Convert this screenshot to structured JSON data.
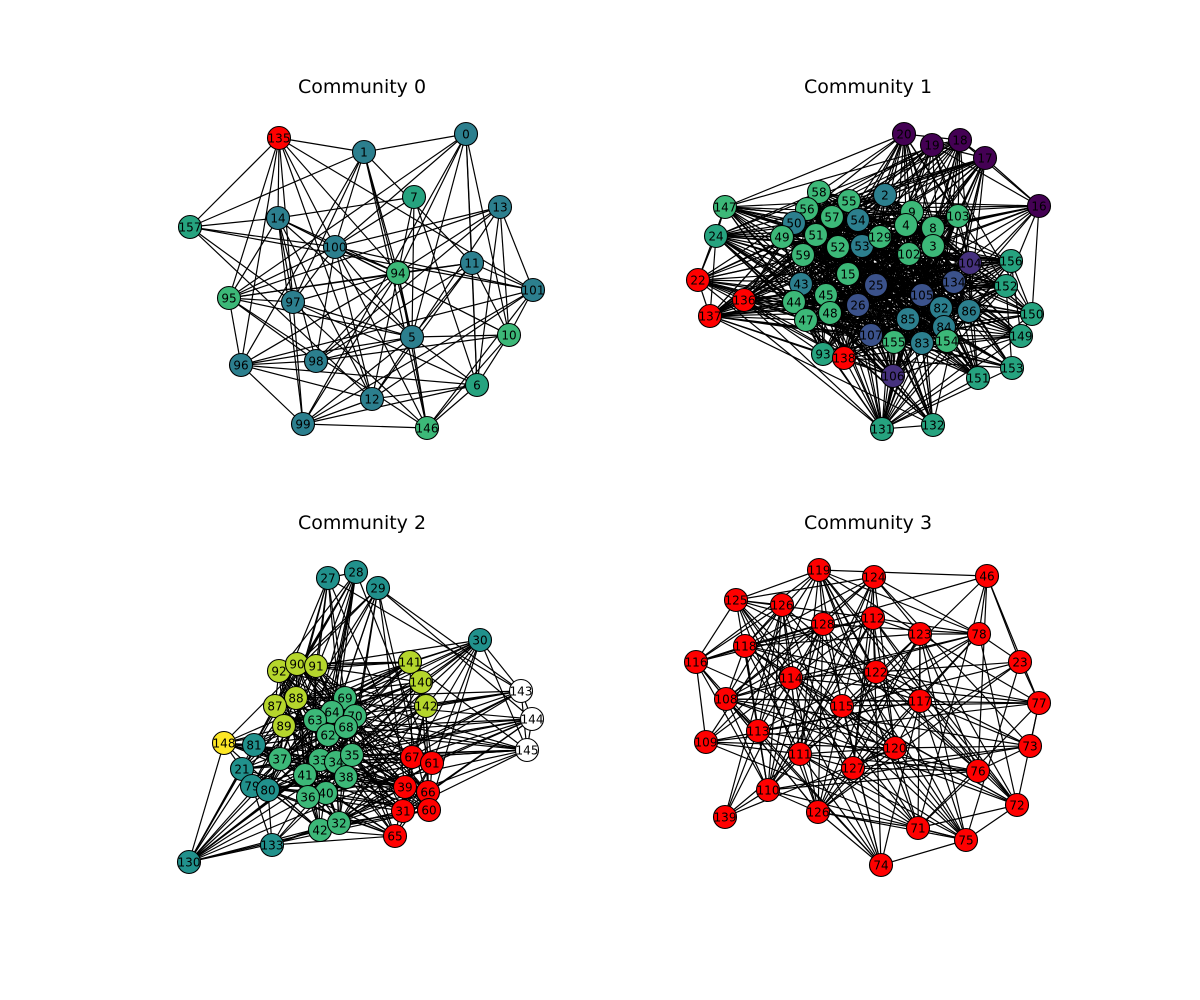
{
  "figure": {
    "panels": [
      {
        "title": "Community 0",
        "edge_density": 0.62,
        "nodes": [
          {
            "label": "135",
            "color": "#ff0000"
          },
          {
            "label": "1",
            "color": "#2c7f8e"
          },
          {
            "label": "0",
            "color": "#2c7f8e"
          },
          {
            "label": "7",
            "color": "#26a37f"
          },
          {
            "label": "13",
            "color": "#2c7f8e"
          },
          {
            "label": "157",
            "color": "#26a37f"
          },
          {
            "label": "14",
            "color": "#2c7f8e"
          },
          {
            "label": "100",
            "color": "#2c7f8e"
          },
          {
            "label": "11",
            "color": "#2c7f8e"
          },
          {
            "label": "94",
            "color": "#3cb878"
          },
          {
            "label": "101",
            "color": "#2c7f8e"
          },
          {
            "label": "95",
            "color": "#3cb878"
          },
          {
            "label": "97",
            "color": "#2c7f8e"
          },
          {
            "label": "5",
            "color": "#2c7f8e"
          },
          {
            "label": "10",
            "color": "#3cb878"
          },
          {
            "label": "96",
            "color": "#2c7f8e"
          },
          {
            "label": "98",
            "color": "#2c7f8e"
          },
          {
            "label": "6",
            "color": "#26a37f"
          },
          {
            "label": "12",
            "color": "#2c7f8e"
          },
          {
            "label": "99",
            "color": "#2c7f8e"
          },
          {
            "label": "146",
            "color": "#3cb878"
          }
        ]
      },
      {
        "title": "Community 1",
        "edge_density": 0.45,
        "nodes": [
          {
            "label": "20",
            "color": "#440154"
          },
          {
            "label": "19",
            "color": "#440154"
          },
          {
            "label": "18",
            "color": "#440154"
          },
          {
            "label": "17",
            "color": "#440154"
          },
          {
            "label": "16",
            "color": "#440154"
          },
          {
            "label": "147",
            "color": "#3cb878"
          },
          {
            "label": "58",
            "color": "#3cb878"
          },
          {
            "label": "55",
            "color": "#3cb878"
          },
          {
            "label": "2",
            "color": "#2c7f8e"
          },
          {
            "label": "56",
            "color": "#3cb878"
          },
          {
            "label": "9",
            "color": "#3cb878"
          },
          {
            "label": "103",
            "color": "#3cb878"
          },
          {
            "label": "24",
            "color": "#26a37f"
          },
          {
            "label": "50",
            "color": "#2c7f8e"
          },
          {
            "label": "57",
            "color": "#3cb878"
          },
          {
            "label": "54",
            "color": "#2c7f8e"
          },
          {
            "label": "4",
            "color": "#3cb878"
          },
          {
            "label": "8",
            "color": "#3cb878"
          },
          {
            "label": "49",
            "color": "#3cb878"
          },
          {
            "label": "51",
            "color": "#3cb878"
          },
          {
            "label": "53",
            "color": "#2c7f8e"
          },
          {
            "label": "129",
            "color": "#3cb878"
          },
          {
            "label": "52",
            "color": "#3cb878"
          },
          {
            "label": "3",
            "color": "#3cb878"
          },
          {
            "label": "59",
            "color": "#3cb878"
          },
          {
            "label": "102",
            "color": "#3cb878"
          },
          {
            "label": "104",
            "color": "#46327e"
          },
          {
            "label": "156",
            "color": "#26a37f"
          },
          {
            "label": "22",
            "color": "#ff0000"
          },
          {
            "label": "15",
            "color": "#3cb878"
          },
          {
            "label": "25",
            "color": "#3b528b"
          },
          {
            "label": "134",
            "color": "#3b528b"
          },
          {
            "label": "152",
            "color": "#26a37f"
          },
          {
            "label": "43",
            "color": "#2c7f8e"
          },
          {
            "label": "136",
            "color": "#ff0000"
          },
          {
            "label": "44",
            "color": "#3cb878"
          },
          {
            "label": "45",
            "color": "#3cb878"
          },
          {
            "label": "105",
            "color": "#3b528b"
          },
          {
            "label": "82",
            "color": "#2c7f8e"
          },
          {
            "label": "86",
            "color": "#2c7f8e"
          },
          {
            "label": "150",
            "color": "#26a37f"
          },
          {
            "label": "137",
            "color": "#ff0000"
          },
          {
            "label": "47",
            "color": "#3cb878"
          },
          {
            "label": "48",
            "color": "#3cb878"
          },
          {
            "label": "26",
            "color": "#3b528b"
          },
          {
            "label": "85",
            "color": "#2c7f8e"
          },
          {
            "label": "84",
            "color": "#2c7f8e"
          },
          {
            "label": "149",
            "color": "#26a37f"
          },
          {
            "label": "107",
            "color": "#3b528b"
          },
          {
            "label": "155",
            "color": "#3cb878"
          },
          {
            "label": "83",
            "color": "#2c7f8e"
          },
          {
            "label": "154",
            "color": "#3cb878"
          },
          {
            "label": "93",
            "color": "#26a37f"
          },
          {
            "label": "138",
            "color": "#ff0000"
          },
          {
            "label": "106",
            "color": "#46327e"
          },
          {
            "label": "151",
            "color": "#26a37f"
          },
          {
            "label": "153",
            "color": "#26a37f"
          },
          {
            "label": "131",
            "color": "#26a37f"
          },
          {
            "label": "132",
            "color": "#26a37f"
          }
        ]
      },
      {
        "title": "Community 2",
        "edge_density": 0.3,
        "nodes": [
          {
            "label": "27",
            "color": "#21918c"
          },
          {
            "label": "28",
            "color": "#21918c"
          },
          {
            "label": "29",
            "color": "#21918c"
          },
          {
            "label": "30",
            "color": "#21918c"
          },
          {
            "label": "92",
            "color": "#b5d62c"
          },
          {
            "label": "90",
            "color": "#b5d62c"
          },
          {
            "label": "91",
            "color": "#b5d62c"
          },
          {
            "label": "141",
            "color": "#b5d62c"
          },
          {
            "label": "140",
            "color": "#b5d62c"
          },
          {
            "label": "88",
            "color": "#b5d62c"
          },
          {
            "label": "69",
            "color": "#3cb878"
          },
          {
            "label": "143",
            "color": "#ffffff"
          },
          {
            "label": "87",
            "color": "#b5d62c"
          },
          {
            "label": "64",
            "color": "#3cb878"
          },
          {
            "label": "70",
            "color": "#3cb878"
          },
          {
            "label": "142",
            "color": "#b5d62c"
          },
          {
            "label": "144",
            "color": "#ffffff"
          },
          {
            "label": "89",
            "color": "#b5d62c"
          },
          {
            "label": "63",
            "color": "#3cb878"
          },
          {
            "label": "62",
            "color": "#3cb878"
          },
          {
            "label": "68",
            "color": "#3cb878"
          },
          {
            "label": "148",
            "color": "#fde725"
          },
          {
            "label": "81",
            "color": "#21918c"
          },
          {
            "label": "145",
            "color": "#ffffff"
          },
          {
            "label": "37",
            "color": "#3cb878"
          },
          {
            "label": "33",
            "color": "#3cb878"
          },
          {
            "label": "34",
            "color": "#3cb878"
          },
          {
            "label": "35",
            "color": "#3cb878"
          },
          {
            "label": "67",
            "color": "#ff0000"
          },
          {
            "label": "61",
            "color": "#ff0000"
          },
          {
            "label": "21",
            "color": "#21918c"
          },
          {
            "label": "41",
            "color": "#3cb878"
          },
          {
            "label": "38",
            "color": "#3cb878"
          },
          {
            "label": "79",
            "color": "#21918c"
          },
          {
            "label": "80",
            "color": "#21918c"
          },
          {
            "label": "39",
            "color": "#ff0000"
          },
          {
            "label": "40",
            "color": "#3cb878"
          },
          {
            "label": "36",
            "color": "#3cb878"
          },
          {
            "label": "66",
            "color": "#ff0000"
          },
          {
            "label": "31",
            "color": "#ff0000"
          },
          {
            "label": "60",
            "color": "#ff0000"
          },
          {
            "label": "42",
            "color": "#3cb878"
          },
          {
            "label": "32",
            "color": "#3cb878"
          },
          {
            "label": "65",
            "color": "#ff0000"
          },
          {
            "label": "133",
            "color": "#21918c"
          },
          {
            "label": "130",
            "color": "#21918c"
          }
        ]
      },
      {
        "title": "Community 3",
        "edge_density": 0.5,
        "nodes": [
          {
            "label": "119",
            "color": "#ff0000"
          },
          {
            "label": "124",
            "color": "#ff0000"
          },
          {
            "label": "46",
            "color": "#ff0000"
          },
          {
            "label": "125",
            "color": "#ff0000"
          },
          {
            "label": "126",
            "color": "#ff0000"
          },
          {
            "label": "128",
            "color": "#ff0000"
          },
          {
            "label": "112",
            "color": "#ff0000"
          },
          {
            "label": "123",
            "color": "#ff0000"
          },
          {
            "label": "78",
            "color": "#ff0000"
          },
          {
            "label": "118",
            "color": "#ff0000"
          },
          {
            "label": "116",
            "color": "#ff0000"
          },
          {
            "label": "23",
            "color": "#ff0000"
          },
          {
            "label": "114",
            "color": "#ff0000"
          },
          {
            "label": "122",
            "color": "#ff0000"
          },
          {
            "label": "108",
            "color": "#ff0000"
          },
          {
            "label": "77",
            "color": "#ff0000"
          },
          {
            "label": "115",
            "color": "#ff0000"
          },
          {
            "label": "117",
            "color": "#ff0000"
          },
          {
            "label": "113",
            "color": "#ff0000"
          },
          {
            "label": "109",
            "color": "#ff0000"
          },
          {
            "label": "73",
            "color": "#ff0000"
          },
          {
            "label": "111",
            "color": "#ff0000"
          },
          {
            "label": "120",
            "color": "#ff0000"
          },
          {
            "label": "127",
            "color": "#ff0000"
          },
          {
            "label": "76",
            "color": "#ff0000"
          },
          {
            "label": "110",
            "color": "#ff0000"
          },
          {
            "label": "139",
            "color": "#ff0000"
          },
          {
            "label": "126",
            "color": "#ff0000"
          },
          {
            "label": "72",
            "color": "#ff0000"
          },
          {
            "label": "71",
            "color": "#ff0000"
          },
          {
            "label": "75",
            "color": "#ff0000"
          },
          {
            "label": "74",
            "color": "#ff0000"
          }
        ]
      }
    ]
  }
}
